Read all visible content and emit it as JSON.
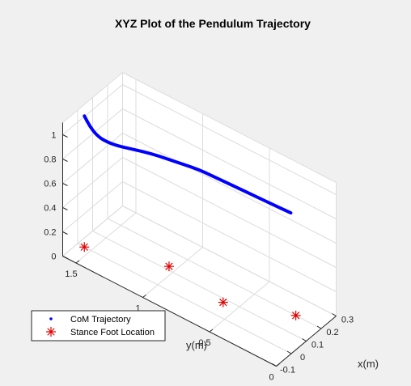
{
  "chart_data": {
    "type": "line3d",
    "title": "XYZ Plot of the Pendulum Trajectory",
    "xlabel": "x(m)",
    "ylabel": "y(m)",
    "zlabel": "",
    "xlim": [
      -0.1,
      0.3
    ],
    "ylim": [
      0,
      1.6
    ],
    "zlim": [
      0,
      1.1
    ],
    "xticks": [
      -0.1,
      0,
      0.1,
      0.2,
      0.3
    ],
    "xtick_labels": [
      "-0.1",
      "0",
      "0.1",
      "0.2",
      "0.3"
    ],
    "yticks": [
      0,
      0.5,
      1,
      1.5
    ],
    "ytick_labels": [
      "0",
      "0.5",
      "1",
      "1.5"
    ],
    "zticks": [
      0,
      0.2,
      0.4,
      0.6,
      0.8,
      1
    ],
    "ztick_labels": [
      "0",
      "0.2",
      "0.4",
      "0.6",
      "0.8",
      "1"
    ],
    "grid": true,
    "legend_position": "bottom-left",
    "series": [
      {
        "name": "CoM Trajectory",
        "kind": "line",
        "color": "#0000ff",
        "x": [
          0.0,
          0.01,
          0.02,
          0.03,
          0.05,
          0.08,
          0.11,
          0.13,
          0.15,
          0.17,
          0.18,
          0.19,
          0.2,
          0.21,
          0.22
        ],
        "y": [
          1.55,
          1.52,
          1.48,
          1.43,
          1.36,
          1.27,
          1.17,
          1.08,
          0.98,
          0.88,
          0.76,
          0.64,
          0.5,
          0.37,
          0.25
        ],
        "z": [
          1.08,
          1.0,
          0.94,
          0.91,
          0.89,
          0.88,
          0.87,
          0.86,
          0.85,
          0.84,
          0.83,
          0.82,
          0.81,
          0.8,
          0.79
        ]
      },
      {
        "name": "Stance Foot Location",
        "kind": "marker",
        "marker": "asterisk",
        "color": "#e00000",
        "x": [
          0.0,
          0.12,
          0.08,
          0.2
        ],
        "y": [
          1.55,
          1.05,
          0.6,
          0.19
        ],
        "z": [
          0,
          0,
          0,
          0
        ]
      }
    ]
  }
}
